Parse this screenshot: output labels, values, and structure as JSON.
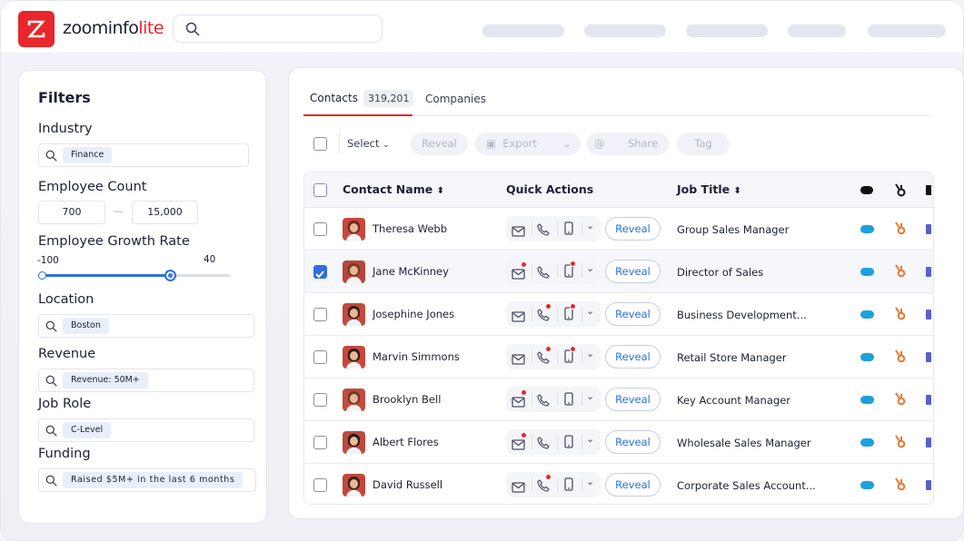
{
  "brand": {
    "name": "zoominfo",
    "suffix": "lite",
    "color": "#e8262b"
  },
  "search": {
    "placeholder": ""
  },
  "filters": {
    "title": "Filters",
    "industry": {
      "label": "Industry",
      "chip": "Finance"
    },
    "employee_count": {
      "label": "Employee Count",
      "min": "700",
      "max": "15,000",
      "separator": "—"
    },
    "growth_rate": {
      "label": "Employee Growth Rate",
      "min_label": "-100",
      "max_label": "40",
      "fill_fraction": 0.68
    },
    "location": {
      "label": "Location",
      "chip": "Boston"
    },
    "revenue": {
      "label": "Revenue",
      "chip": "Revenue: 50M+"
    },
    "job_role": {
      "label": "Job Role",
      "chip": "C-Level"
    },
    "funding": {
      "label": "Funding",
      "chip": "Raised $5M+ in the last 6 months"
    }
  },
  "tabs": [
    {
      "label": "Contacts",
      "count": "319,201",
      "active": true
    },
    {
      "label": "Companies"
    }
  ],
  "toolbar": {
    "select": "Select",
    "reveal": "Reveal",
    "export": "Export",
    "share": "Share",
    "tag": "Tag"
  },
  "table": {
    "columns": [
      "Contact Name",
      "Quick Actions",
      "Job Title"
    ],
    "reveal_label": "Reveal",
    "rows": [
      {
        "name": "Theresa Webb",
        "job": "Group Sales Manager",
        "checked": false,
        "badges": []
      },
      {
        "name": "Jane McKinney",
        "job": "Director of Sales",
        "checked": true,
        "badges": [
          "email",
          "mobile"
        ]
      },
      {
        "name": "Josephine Jones",
        "job": "Business Development...",
        "checked": false,
        "badges": [
          "phone",
          "mobile"
        ]
      },
      {
        "name": "Marvin Simmons",
        "job": "Retail Store Manager",
        "checked": false,
        "badges": [
          "phone",
          "mobile"
        ]
      },
      {
        "name": "Brooklyn Bell",
        "job": "Key Account Manager",
        "checked": false,
        "badges": [
          "email"
        ]
      },
      {
        "name": "Albert Flores",
        "job": "Wholesale Sales Manager",
        "checked": false,
        "badges": [
          "email"
        ]
      },
      {
        "name": "David Russell",
        "job": "Corporate Sales Account...",
        "checked": false,
        "badges": [
          "phone"
        ]
      }
    ]
  },
  "colors": {
    "accent": "#e8262b",
    "link": "#2f6fe0",
    "salesforce": "#1ea0db",
    "hubspot": "#e8762d"
  }
}
